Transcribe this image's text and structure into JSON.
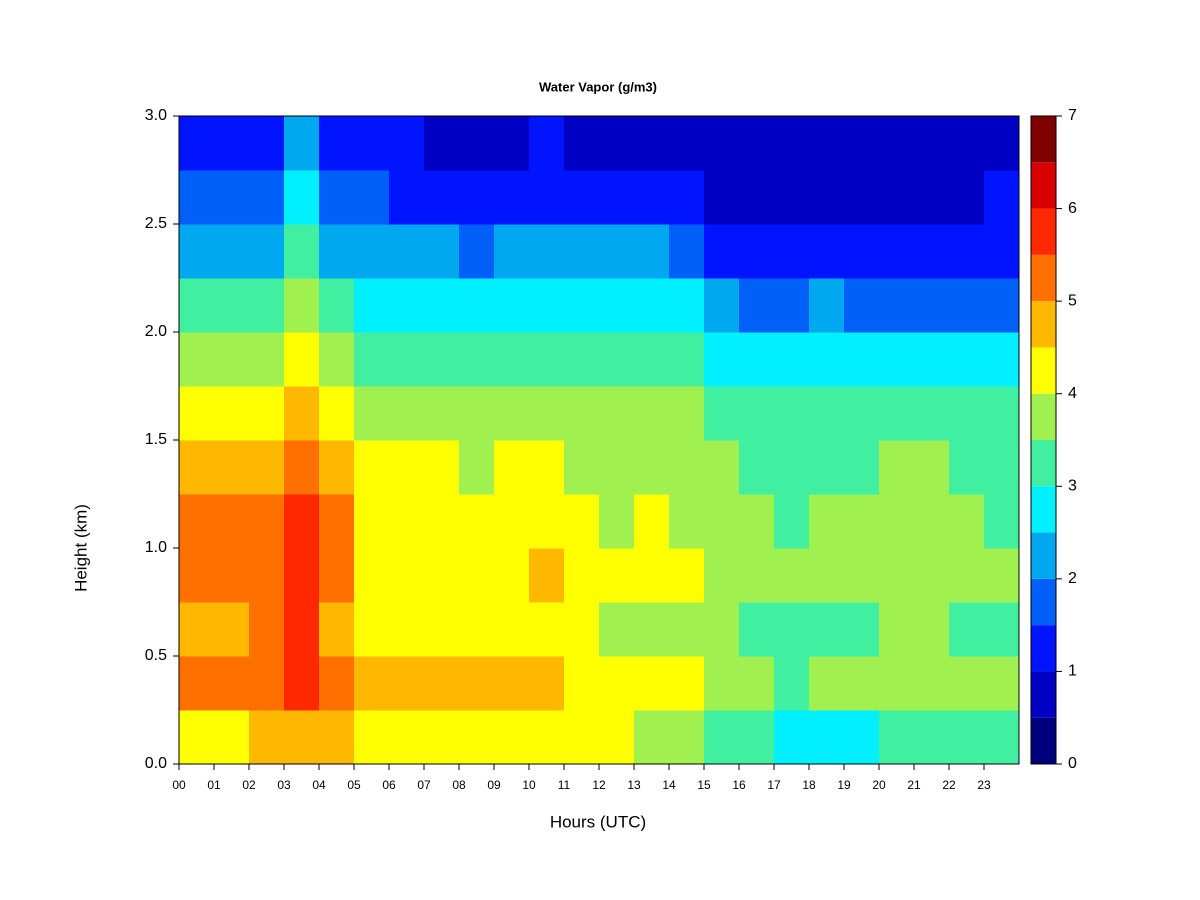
{
  "chart_data": {
    "type": "heatmap",
    "title": "Water Vapor (g/m3)",
    "xlabel": "Hours (UTC)",
    "ylabel": "Height (km)",
    "x": [
      0.5,
      1.5,
      2.5,
      3.5,
      4.5,
      5.5,
      6.5,
      7.5,
      8.5,
      9.5,
      10.5,
      11.5,
      12.5,
      13.5,
      14.5,
      15.5,
      16.5,
      17.5,
      18.5,
      19.5,
      20.5,
      21.5,
      22.5,
      23.5
    ],
    "y": [
      0.125,
      0.375,
      0.625,
      0.875,
      1.125,
      1.375,
      1.625,
      1.875,
      2.125,
      2.375,
      2.625,
      2.875
    ],
    "z": [
      [
        4.3,
        5.2,
        4.7,
        5.0,
        5.2,
        4.8,
        4.3,
        3.7,
        3.2,
        2.3,
        1.8,
        1.2
      ],
      [
        4.4,
        5.2,
        4.7,
        5.0,
        5.1,
        4.7,
        4.3,
        3.6,
        3.2,
        2.3,
        1.7,
        1.3
      ],
      [
        4.6,
        5.3,
        5.0,
        5.2,
        5.2,
        4.9,
        4.3,
        3.7,
        3.1,
        2.3,
        1.7,
        1.3
      ],
      [
        4.8,
        5.8,
        5.6,
        5.8,
        5.8,
        5.4,
        4.8,
        4.2,
        3.6,
        3.1,
        2.6,
        2.2
      ],
      [
        4.7,
        5.3,
        4.8,
        5.2,
        5.1,
        4.8,
        4.3,
        3.6,
        3.1,
        2.2,
        1.6,
        1.2
      ],
      [
        4.3,
        4.8,
        4.2,
        4.3,
        4.2,
        4.0,
        3.6,
        3.4,
        2.9,
        2.2,
        1.5,
        1.1
      ],
      [
        4.3,
        4.9,
        4.2,
        4.3,
        4.3,
        4.1,
        3.7,
        3.4,
        2.8,
        2.1,
        1.4,
        1.0
      ],
      [
        4.2,
        4.6,
        4.1,
        4.2,
        4.1,
        4.0,
        3.7,
        3.3,
        2.7,
        2.0,
        1.3,
        0.9
      ],
      [
        4.2,
        4.5,
        4.0,
        4.1,
        4.0,
        3.9,
        3.6,
        3.3,
        2.7,
        1.9,
        1.3,
        0.9
      ],
      [
        4.2,
        4.7,
        4.1,
        4.3,
        4.2,
        4.0,
        3.7,
        3.3,
        2.8,
        2.0,
        1.4,
        0.9
      ],
      [
        4.2,
        4.8,
        4.2,
        4.6,
        4.3,
        4.1,
        3.7,
        3.3,
        2.8,
        2.1,
        1.4,
        1.0
      ],
      [
        4.1,
        4.4,
        4.0,
        4.1,
        4.0,
        3.8,
        3.6,
        3.3,
        2.8,
        2.0,
        1.3,
        0.9
      ],
      [
        4.0,
        4.3,
        3.9,
        4.0,
        3.9,
        3.8,
        3.6,
        3.3,
        2.8,
        2.0,
        1.3,
        0.8
      ],
      [
        3.8,
        4.2,
        3.9,
        4.1,
        4.1,
        3.8,
        3.6,
        3.3,
        2.8,
        2.0,
        1.3,
        0.8
      ],
      [
        3.5,
        4.1,
        3.9,
        4.0,
        3.9,
        3.8,
        3.6,
        3.2,
        2.7,
        1.9,
        1.2,
        0.7
      ],
      [
        3.3,
        3.7,
        3.6,
        3.9,
        3.8,
        3.6,
        3.3,
        2.8,
        2.2,
        1.4,
        0.9,
        0.6
      ],
      [
        3.2,
        3.6,
        3.4,
        3.7,
        3.6,
        3.4,
        3.1,
        2.6,
        1.9,
        1.3,
        0.8,
        0.5
      ],
      [
        2.9,
        3.4,
        3.2,
        3.5,
        3.4,
        3.3,
        3.0,
        2.5,
        1.8,
        1.2,
        0.8,
        0.5
      ],
      [
        2.9,
        3.5,
        3.3,
        3.7,
        3.6,
        3.4,
        3.1,
        2.6,
        2.0,
        1.3,
        0.8,
        0.5
      ],
      [
        2.8,
        3.6,
        3.4,
        3.8,
        3.7,
        3.4,
        3.1,
        2.6,
        1.9,
        1.3,
        0.8,
        0.5
      ],
      [
        3.0,
        3.7,
        3.5,
        3.8,
        3.7,
        3.5,
        3.1,
        2.6,
        1.9,
        1.2,
        0.8,
        0.5
      ],
      [
        3.2,
        3.7,
        3.5,
        3.8,
        3.7,
        3.5,
        3.1,
        2.6,
        1.9,
        1.3,
        0.8,
        0.5
      ],
      [
        3.2,
        3.6,
        3.4,
        3.6,
        3.5,
        3.4,
        3.1,
        2.6,
        1.9,
        1.3,
        0.9,
        0.6
      ],
      [
        3.1,
        3.6,
        3.3,
        3.5,
        3.4,
        3.3,
        3.0,
        2.6,
        1.9,
        1.4,
        1.0,
        0.7
      ]
    ],
    "xlim": [
      0,
      24
    ],
    "ylim": [
      0,
      3
    ],
    "xticks": [
      {
        "value": 0,
        "label": "00"
      },
      {
        "value": 1,
        "label": "01"
      },
      {
        "value": 2,
        "label": "02"
      },
      {
        "value": 3,
        "label": "03"
      },
      {
        "value": 4,
        "label": "04"
      },
      {
        "value": 5,
        "label": "05"
      },
      {
        "value": 6,
        "label": "06"
      },
      {
        "value": 7,
        "label": "07"
      },
      {
        "value": 8,
        "label": "08"
      },
      {
        "value": 9,
        "label": "09"
      },
      10,
      11,
      12,
      13,
      14,
      15,
      16,
      17,
      18,
      19,
      20,
      21,
      22,
      23
    ],
    "yticks": [
      {
        "value": 0,
        "label": "0.0"
      },
      0.5,
      {
        "value": 1,
        "label": "1.0"
      },
      1.5,
      {
        "value": 2,
        "label": "2.0"
      },
      2.5,
      {
        "value": 3,
        "label": "3.0"
      }
    ],
    "colorbar": {
      "levels": [
        0,
        0.5,
        1,
        1.5,
        2,
        2.5,
        3,
        3.5,
        4,
        4.5,
        5,
        5.5,
        6,
        6.5,
        7
      ],
      "colors": [
        "#00007F",
        "#0000C4",
        "#0014FF",
        "#0060F8",
        "#00A8F0",
        "#00F0FF",
        "#40F0A0",
        "#A0F050",
        "#FFFF00",
        "#FFB800",
        "#FF7000",
        "#FF2800",
        "#D80000",
        "#800000"
      ],
      "ticks": [
        0,
        1,
        2,
        3,
        4,
        5,
        6,
        7
      ]
    }
  }
}
